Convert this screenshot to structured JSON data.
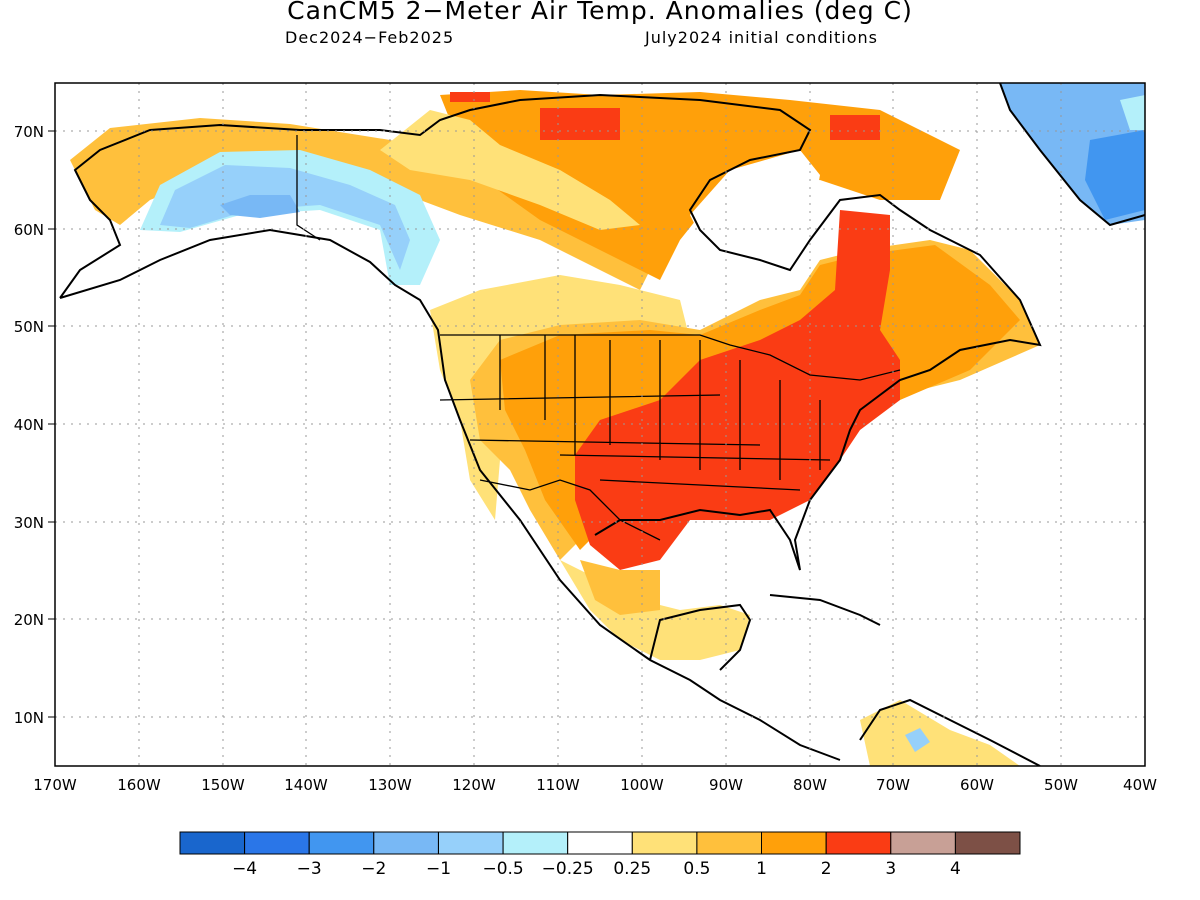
{
  "title": "CanCM5 2−Meter Air Temp. Anomalies (deg C)",
  "subtitle_left": "Dec2024−Feb2025",
  "subtitle_right": "July2024 initial conditions",
  "map": {
    "lon_range": [
      -170,
      -40
    ],
    "lat_range": [
      5,
      75
    ],
    "lat_labels": [
      "10N",
      "20N",
      "30N",
      "40N",
      "50N",
      "60N",
      "70N"
    ],
    "lon_labels": [
      "170W",
      "160W",
      "150W",
      "140W",
      "130W",
      "120W",
      "110W",
      "100W",
      "90W",
      "80W",
      "70W",
      "60W",
      "50W",
      "40W"
    ],
    "gridlines": "dotted"
  },
  "colorbar": {
    "labels": [
      "−4",
      "−3",
      "−2",
      "−1",
      "−0.5",
      "−0.25",
      "0.25",
      "0.5",
      "1",
      "2",
      "3",
      "4"
    ],
    "colors": [
      "#1966cd",
      "#2a76e8",
      "#4196f0",
      "#78b8f5",
      "#96d0fa",
      "#b4f0fa",
      "#ffffff",
      "#ffe178",
      "#ffc03c",
      "#ffa00a",
      "#fa3c14",
      "#c8a096",
      "#7d5046"
    ]
  }
}
